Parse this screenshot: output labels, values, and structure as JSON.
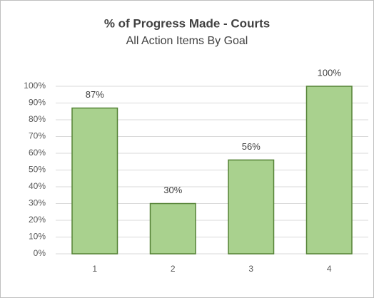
{
  "chart_data": {
    "type": "bar",
    "title": "% of Progress Made - Courts",
    "subtitle": "All Action Items By Goal",
    "categories": [
      "1",
      "2",
      "3",
      "4"
    ],
    "values": [
      87,
      30,
      56,
      100
    ],
    "value_labels": [
      "87%",
      "30%",
      "56%",
      "100%"
    ],
    "color": "#a9d18e",
    "edge_color": "#548235",
    "ylim": [
      0,
      100
    ],
    "yticks": [
      {
        "value": 0,
        "label": "0%"
      },
      {
        "value": 10,
        "label": "10%"
      },
      {
        "value": 20,
        "label": "20%"
      },
      {
        "value": 30,
        "label": "30%"
      },
      {
        "value": 40,
        "label": "40%"
      },
      {
        "value": 50,
        "label": "50%"
      },
      {
        "value": 60,
        "label": "60%"
      },
      {
        "value": 70,
        "label": "70%"
      },
      {
        "value": 80,
        "label": "80%"
      },
      {
        "value": 90,
        "label": "90%"
      },
      {
        "value": 100,
        "label": "100%"
      }
    ],
    "grid": true
  }
}
